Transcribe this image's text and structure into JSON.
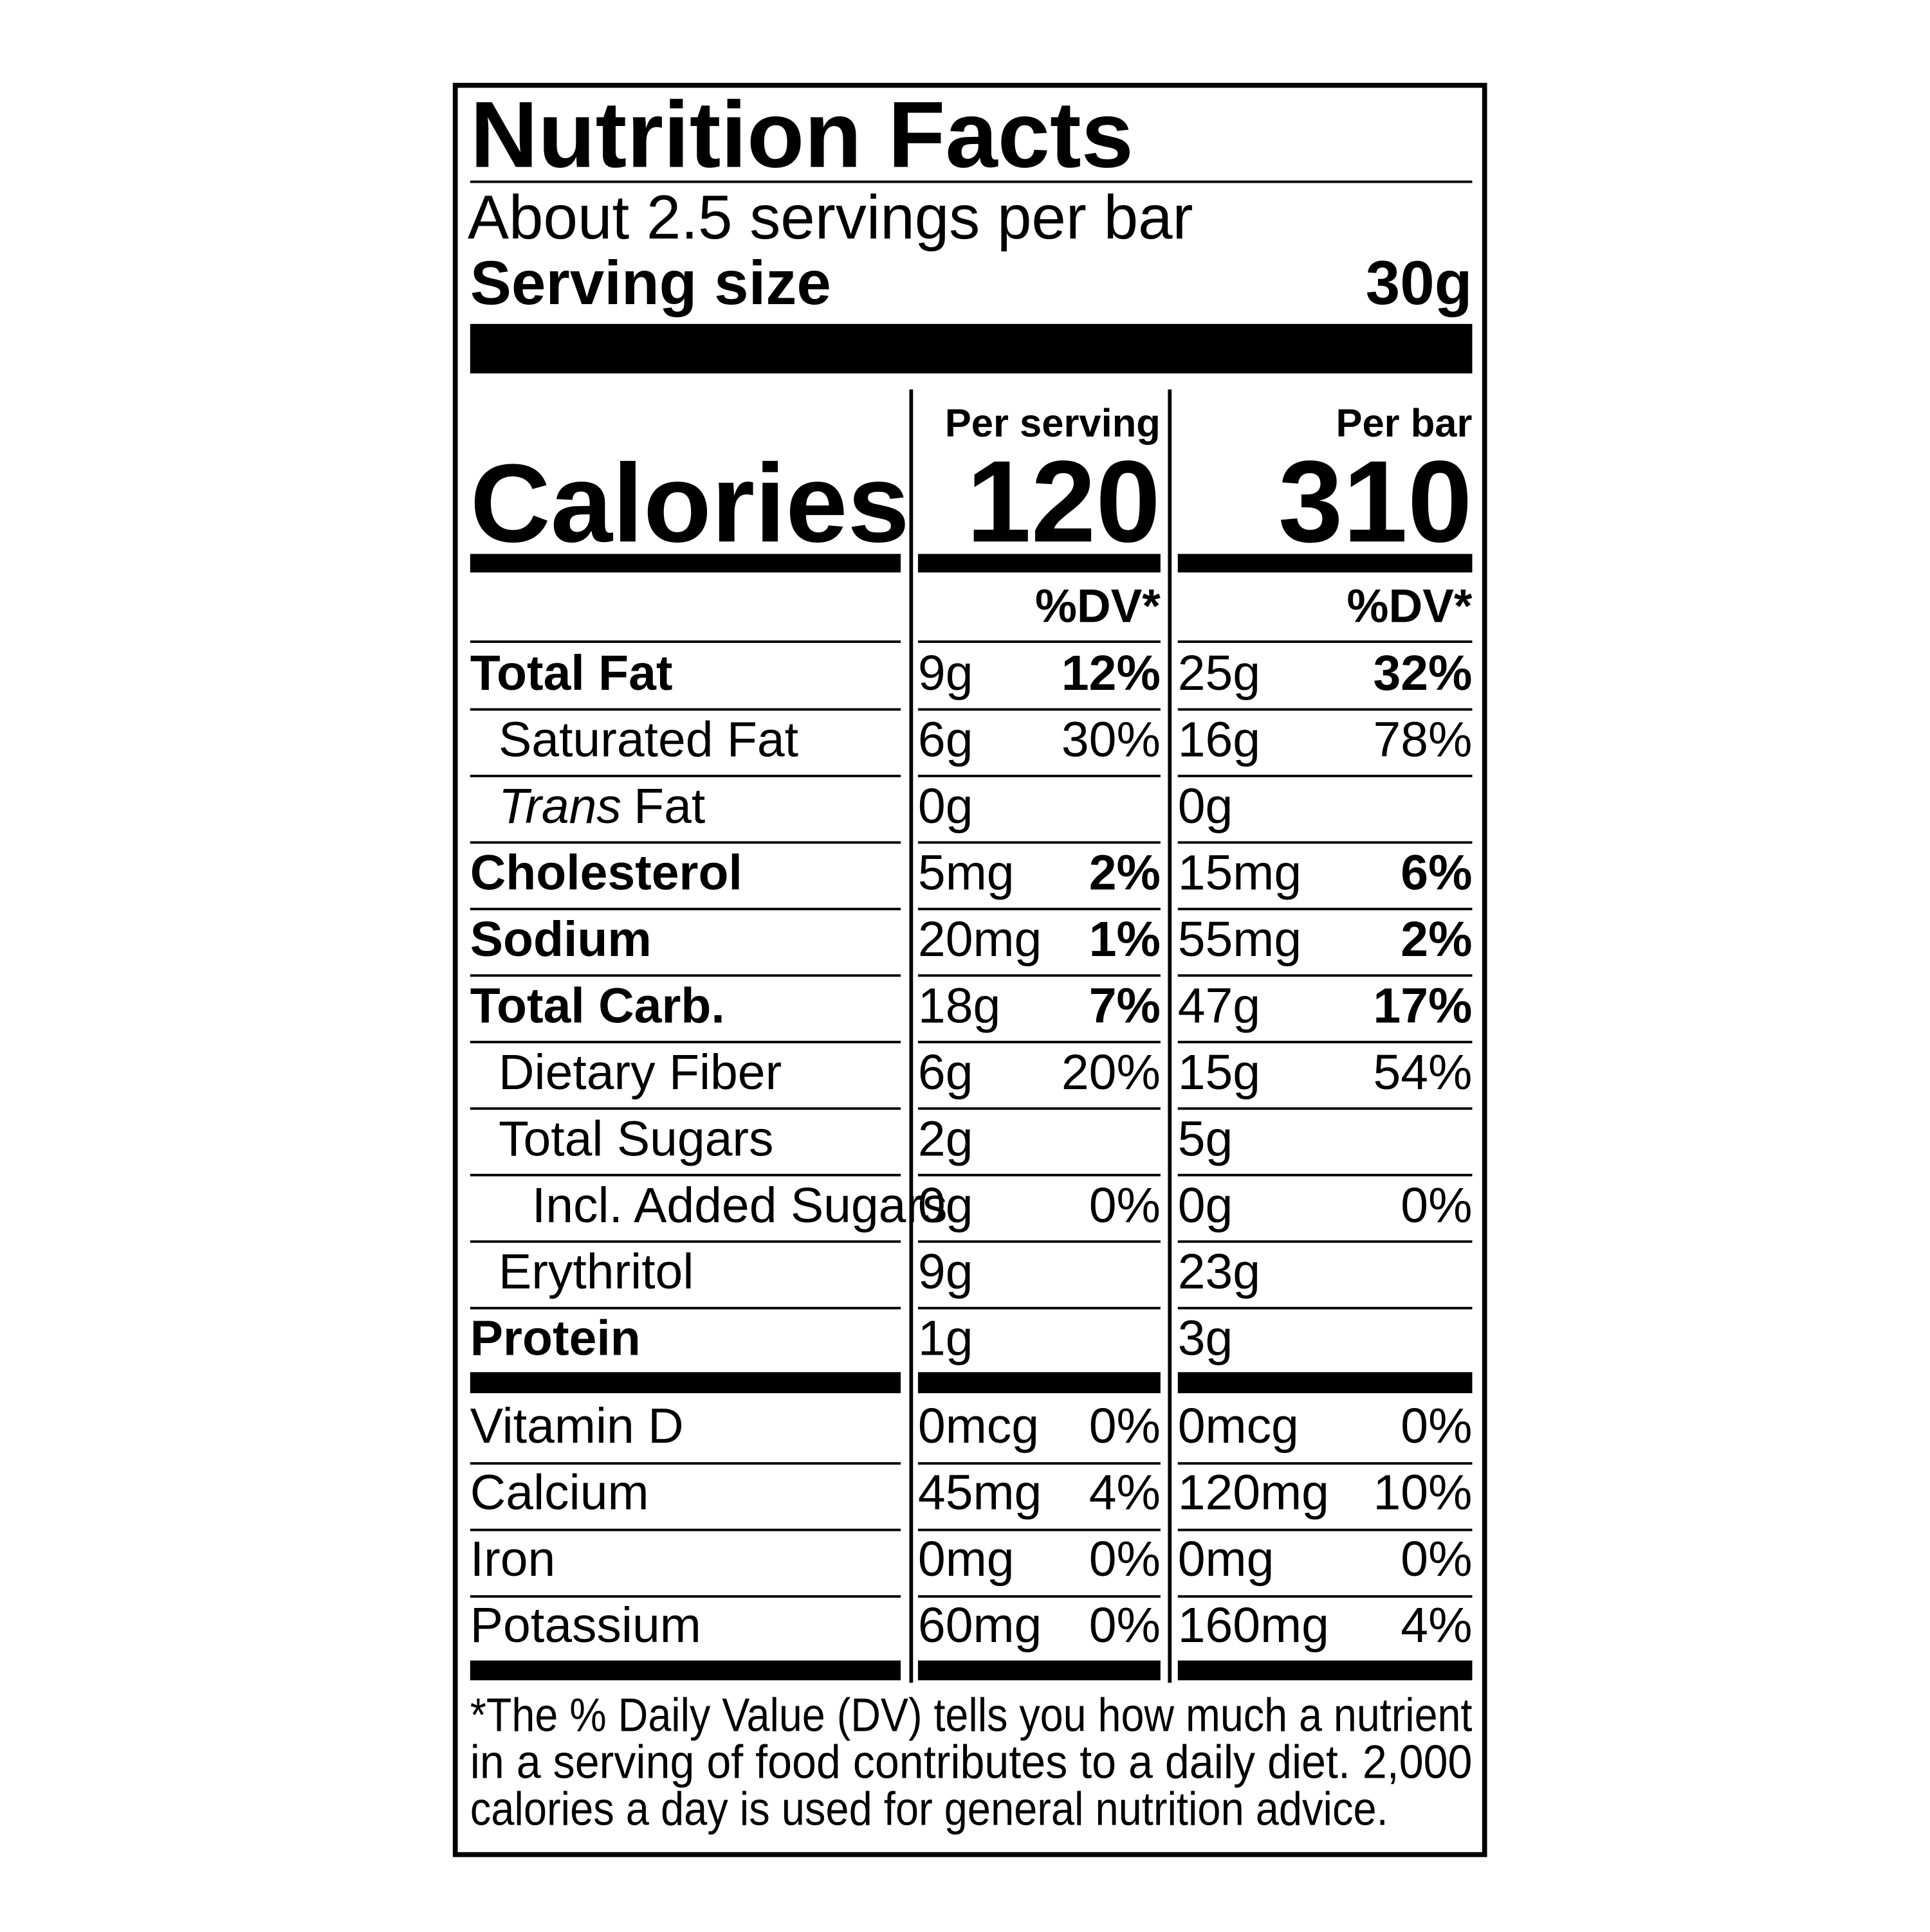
{
  "title": "Nutrition Facts",
  "servings": "About 2.5 servings per bar",
  "serving_size": {
    "label": "Serving size",
    "value": "30g"
  },
  "calories": {
    "label": "Calories",
    "columns": [
      {
        "header": "Per serving",
        "value": "120",
        "dv_header": "%DV*"
      },
      {
        "header": "Per bar",
        "value": "310",
        "dv_header": "%DV*"
      }
    ]
  },
  "nutrients": [
    {
      "name": "Total Fat",
      "bold": true,
      "indent": 0,
      "per_serving": [
        "9g",
        "12%"
      ],
      "per_bar": [
        "25g",
        "32%"
      ]
    },
    {
      "name": "Saturated Fat",
      "bold": false,
      "indent": 1,
      "per_serving": [
        "6g",
        "30%"
      ],
      "per_bar": [
        "16g",
        "78%"
      ]
    },
    {
      "name_italic": "Trans",
      "name": "Fat",
      "bold": false,
      "indent": 1,
      "per_serving": [
        "0g"
      ],
      "per_bar": [
        "0g"
      ]
    },
    {
      "name": "Cholesterol",
      "bold": true,
      "indent": 0,
      "per_serving": [
        "5mg",
        "2%"
      ],
      "per_bar": [
        "15mg",
        "6%"
      ]
    },
    {
      "name": "Sodium",
      "bold": true,
      "indent": 0,
      "per_serving": [
        "20mg",
        "1%"
      ],
      "per_bar": [
        "55mg",
        "2%"
      ]
    },
    {
      "name": "Total Carb.",
      "bold": true,
      "indent": 0,
      "per_serving": [
        "18g",
        "7%"
      ],
      "per_bar": [
        "47g",
        "17%"
      ]
    },
    {
      "name": "Dietary Fiber",
      "bold": false,
      "indent": 1,
      "per_serving": [
        "6g",
        "20%"
      ],
      "per_bar": [
        "15g",
        "54%"
      ]
    },
    {
      "name": "Total Sugars",
      "bold": false,
      "indent": 1,
      "per_serving": [
        "2g"
      ],
      "per_bar": [
        "5g"
      ]
    },
    {
      "name": "Incl. Added Sugars",
      "bold": false,
      "indent": 2,
      "per_serving": [
        "0g",
        "0%"
      ],
      "per_bar": [
        "0g",
        "0%"
      ]
    },
    {
      "name": "Erythritol",
      "bold": false,
      "indent": 1,
      "per_serving": [
        "9g"
      ],
      "per_bar": [
        "23g"
      ]
    },
    {
      "name": "Protein",
      "bold": true,
      "indent": 0,
      "per_serving": [
        "1g"
      ],
      "per_bar": [
        "3g"
      ]
    }
  ],
  "vitamins": [
    {
      "name": "Vitamin D",
      "per_serving": [
        "0mcg",
        "0%"
      ],
      "per_bar": [
        "0mcg",
        "0%"
      ]
    },
    {
      "name": "Calcium",
      "per_serving": [
        "45mg",
        "4%"
      ],
      "per_bar": [
        "120mg",
        "10%"
      ]
    },
    {
      "name": "Iron",
      "per_serving": [
        "0mg",
        "0%"
      ],
      "per_bar": [
        "0mg",
        "0%"
      ]
    },
    {
      "name": "Potassium",
      "per_serving": [
        "60mg",
        "0%"
      ],
      "per_bar": [
        "160mg",
        "4%"
      ]
    }
  ],
  "footnote": [
    "*The % Daily Value (DV) tells you how much a nutrient",
    "in a serving of food contributes to a daily diet. 2,000",
    "calories a day is used for general nutrition advice."
  ]
}
